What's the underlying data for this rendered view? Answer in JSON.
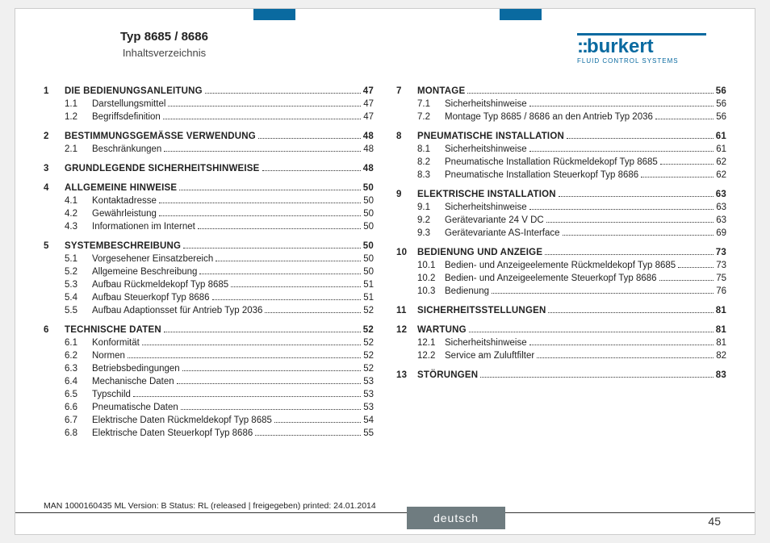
{
  "header": {
    "type_line": "Typ 8685 / 8686",
    "subtitle": "Inhaltsverzeichnis",
    "logo_name": "burkert",
    "logo_tag": "FLUID CONTROL SYSTEMS"
  },
  "left_sections": [
    {
      "num": "1",
      "title": "Die Bedienungsanleitung",
      "page": "47",
      "subs": [
        {
          "num": "1.1",
          "title": "Darstellungsmittel",
          "page": "47"
        },
        {
          "num": "1.2",
          "title": "Begriffsdefinition",
          "page": "47"
        }
      ]
    },
    {
      "num": "2",
      "title": "Bestimmungsgemässe Verwendung",
      "page": "48",
      "subs": [
        {
          "num": "2.1",
          "title": "Beschränkungen",
          "page": "48"
        }
      ]
    },
    {
      "num": "3",
      "title": "Grundlegende Sicherheitshinweise",
      "page": "48",
      "subs": []
    },
    {
      "num": "4",
      "title": "Allgemeine Hinweise",
      "page": "50",
      "subs": [
        {
          "num": "4.1",
          "title": "Kontaktadresse",
          "page": "50"
        },
        {
          "num": "4.2",
          "title": "Gewährleistung",
          "page": "50"
        },
        {
          "num": "4.3",
          "title": "Informationen im Internet",
          "page": "50"
        }
      ]
    },
    {
      "num": "5",
      "title": "Systembeschreibung",
      "page": "50",
      "subs": [
        {
          "num": "5.1",
          "title": "Vorgesehener Einsatzbereich",
          "page": "50"
        },
        {
          "num": "5.2",
          "title": "Allgemeine Beschreibung",
          "page": "50"
        },
        {
          "num": "5.3",
          "title": "Aufbau Rückmeldekopf Typ 8685",
          "page": "51"
        },
        {
          "num": "5.4",
          "title": "Aufbau Steuerkopf Typ 8686",
          "page": "51"
        },
        {
          "num": "5.5",
          "title": "Aufbau Adaptionsset für Antrieb Typ 2036",
          "page": "52"
        }
      ]
    },
    {
      "num": "6",
      "title": "Technische Daten",
      "page": "52",
      "subs": [
        {
          "num": "6.1",
          "title": "Konformität",
          "page": "52"
        },
        {
          "num": "6.2",
          "title": "Normen",
          "page": "52"
        },
        {
          "num": "6.3",
          "title": "Betriebsbedingungen",
          "page": "52"
        },
        {
          "num": "6.4",
          "title": "Mechanische Daten",
          "page": "53"
        },
        {
          "num": "6.5",
          "title": "Typschild",
          "page": "53"
        },
        {
          "num": "6.6",
          "title": "Pneumatische Daten",
          "page": "53"
        },
        {
          "num": "6.7",
          "title": "Elektrische Daten Rückmeldekopf Typ 8685",
          "page": "54"
        },
        {
          "num": "6.8",
          "title": "Elektrische Daten Steuerkopf Typ 8686",
          "page": "55"
        }
      ]
    }
  ],
  "right_sections": [
    {
      "num": "7",
      "title": "Montage",
      "page": "56",
      "subs": [
        {
          "num": "7.1",
          "title": "Sicherheitshinweise",
          "page": "56"
        },
        {
          "num": "7.2",
          "title": "Montage Typ 8685 / 8686 an den Antrieb Typ 2036",
          "page": "56"
        }
      ]
    },
    {
      "num": "8",
      "title": "Pneumatische Installation",
      "page": "61",
      "subs": [
        {
          "num": "8.1",
          "title": "Sicherheitshinweise",
          "page": "61"
        },
        {
          "num": "8.2",
          "title": "Pneumatische Installation Rückmeldekopf Typ 8685",
          "page": "62"
        },
        {
          "num": "8.3",
          "title": "Pneumatische Installation Steuerkopf Typ 8686",
          "page": "62"
        }
      ]
    },
    {
      "num": "9",
      "title": "Elektrische Installation",
      "page": "63",
      "subs": [
        {
          "num": "9.1",
          "title": "Sicherheitshinweise",
          "page": "63"
        },
        {
          "num": "9.2",
          "title": "Gerätevariante 24 V DC",
          "page": "63"
        },
        {
          "num": "9.3",
          "title": "Gerätevariante AS-Interface",
          "page": "69"
        }
      ]
    },
    {
      "num": "10",
      "title": "Bedienung und Anzeige",
      "page": "73",
      "subs": [
        {
          "num": "10.1",
          "title": "Bedien- und Anzeigeelemente Rückmeldekopf Typ 8685",
          "page": "73",
          "wrap": true
        },
        {
          "num": "10.2",
          "title": "Bedien- und Anzeigeelemente Steuerkopf Typ 8686",
          "page": "75"
        },
        {
          "num": "10.3",
          "title": "Bedienung",
          "page": "76"
        }
      ]
    },
    {
      "num": "11",
      "title": "Sicherheitsstellungen",
      "page": "81",
      "subs": []
    },
    {
      "num": "12",
      "title": "Wartung",
      "page": "81",
      "subs": [
        {
          "num": "12.1",
          "title": "Sicherheitshinweise",
          "page": "81"
        },
        {
          "num": "12.2",
          "title": "Service am Zuluftfilter",
          "page": "82"
        }
      ]
    },
    {
      "num": "13",
      "title": "Störungen",
      "page": "83",
      "subs": []
    }
  ],
  "footer": {
    "meta": "MAN  1000160435  ML  Version: B Status: RL (released | freigegeben)  printed: 24.01.2014",
    "language": "deutsch",
    "page_number": "45"
  },
  "colors": {
    "accent": "#0a6aa0",
    "lang_bg": "#6f7c80"
  }
}
